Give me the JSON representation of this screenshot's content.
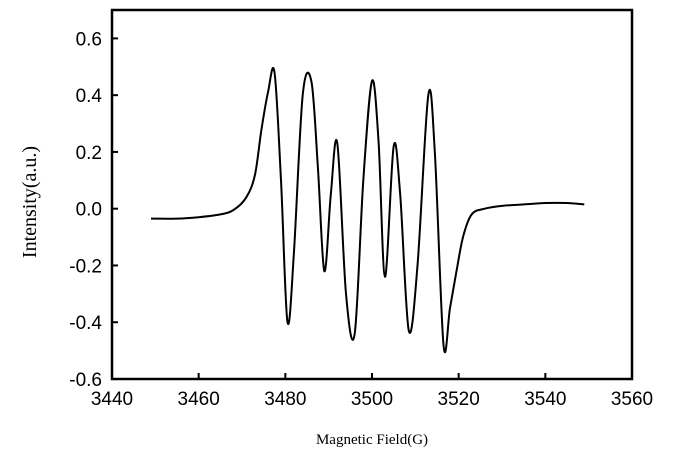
{
  "chart_data": {
    "type": "line",
    "title": "",
    "xlabel": "Magnetic Field(G)",
    "ylabel": "Intensity(a.u.)",
    "xlim": [
      3440,
      3560
    ],
    "ylim": [
      -0.6,
      0.7
    ],
    "xticks": [
      3440,
      3460,
      3480,
      3500,
      3520,
      3540,
      3560
    ],
    "yticks": [
      -0.6,
      -0.4,
      -0.2,
      0.0,
      0.2,
      0.4,
      0.6
    ],
    "x_tick_labels": [
      "3440",
      "3460",
      "3480",
      "3500",
      "3520",
      "3540",
      "3560"
    ],
    "y_tick_labels": [
      "-0.6",
      "-0.4",
      "-0.2",
      "0.0",
      "0.2",
      "0.4",
      "0.6"
    ],
    "grid": false,
    "legend": "none",
    "line_color": "#000000",
    "series": [
      {
        "x": [
          3449,
          3455,
          3460,
          3465,
          3468,
          3471,
          3473,
          3474.5,
          3476,
          3477.5,
          3479,
          3480.5,
          3482,
          3484,
          3486,
          3487.5,
          3489,
          3490.5,
          3492,
          3494,
          3496,
          3498,
          3500,
          3501.5,
          3503,
          3505,
          3506.5,
          3508.5,
          3510.5,
          3513,
          3514.5,
          3516.5,
          3518,
          3519.5,
          3521,
          3523,
          3526,
          3530,
          3535,
          3540,
          3545,
          3549
        ],
        "y": [
          -0.035,
          -0.035,
          -0.03,
          -0.02,
          -0.005,
          0.04,
          0.12,
          0.28,
          0.41,
          0.48,
          0.1,
          -0.4,
          -0.15,
          0.4,
          0.45,
          0.15,
          -0.22,
          0.05,
          0.23,
          -0.3,
          -0.44,
          0.1,
          0.45,
          0.24,
          -0.24,
          0.22,
          0.05,
          -0.43,
          -0.2,
          0.4,
          0.2,
          -0.48,
          -0.35,
          -0.22,
          -0.1,
          -0.02,
          0.0,
          0.01,
          0.015,
          0.02,
          0.02,
          0.015
        ]
      }
    ]
  }
}
